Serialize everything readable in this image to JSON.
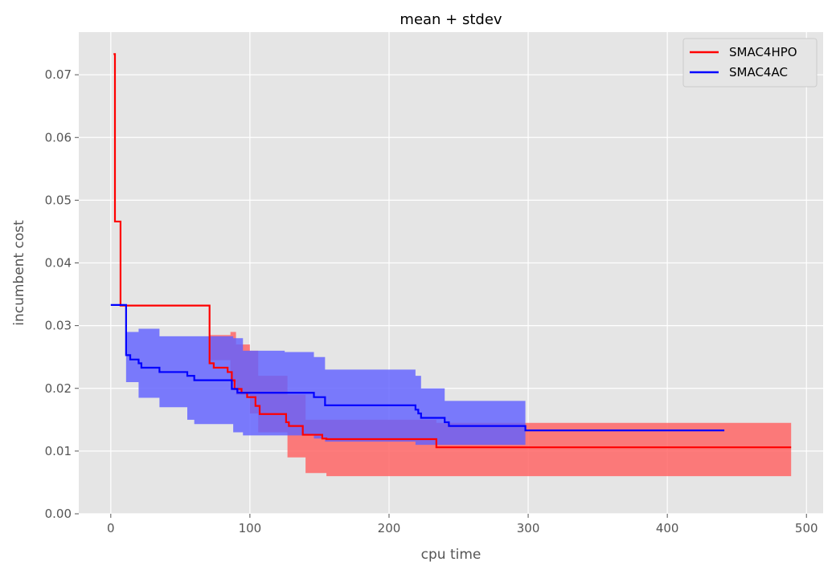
{
  "chart_data": {
    "type": "line",
    "title": "mean + stdev",
    "xlabel": "cpu time",
    "ylabel": "incumbent cost",
    "xlim": [
      -23,
      512
    ],
    "ylim": [
      0.0,
      0.0768
    ],
    "xticks": [
      "0",
      "100",
      "200",
      "300",
      "400",
      "500"
    ],
    "yticks": [
      "0.00",
      "0.01",
      "0.02",
      "0.03",
      "0.04",
      "0.05",
      "0.06",
      "0.07"
    ],
    "grid": true,
    "legend_position": "top-right",
    "series": [
      {
        "name": "SMAC4HPO",
        "color": "#ff0000",
        "band_color": "#ff6060",
        "points": [
          [
            2,
            0.0733
          ],
          [
            3,
            0.0733
          ],
          [
            3,
            0.0466
          ],
          [
            7,
            0.0466
          ],
          [
            7,
            0.0332
          ],
          [
            71,
            0.0332
          ],
          [
            71,
            0.024
          ],
          [
            74,
            0.024
          ],
          [
            74,
            0.0233
          ],
          [
            84,
            0.0233
          ],
          [
            84,
            0.0226
          ],
          [
            87,
            0.0226
          ],
          [
            87,
            0.0213
          ],
          [
            89,
            0.0213
          ],
          [
            89,
            0.0199
          ],
          [
            94,
            0.0199
          ],
          [
            94,
            0.0193
          ],
          [
            98,
            0.0193
          ],
          [
            98,
            0.0186
          ],
          [
            104,
            0.0186
          ],
          [
            104,
            0.0172
          ],
          [
            107,
            0.0172
          ],
          [
            107,
            0.0159
          ],
          [
            126,
            0.0159
          ],
          [
            126,
            0.0146
          ],
          [
            128,
            0.0146
          ],
          [
            128,
            0.014
          ],
          [
            138,
            0.014
          ],
          [
            138,
            0.0126
          ],
          [
            152,
            0.0126
          ],
          [
            152,
            0.012
          ],
          [
            155,
            0.012
          ],
          [
            155,
            0.0119
          ],
          [
            234,
            0.0119
          ],
          [
            234,
            0.0106
          ],
          [
            489,
            0.0106
          ]
        ],
        "band": [
          [
            71,
            0.0245,
            0.0285
          ],
          [
            86,
            0.021,
            0.029
          ],
          [
            90,
            0.019,
            0.027
          ],
          [
            100,
            0.016,
            0.026
          ],
          [
            106,
            0.013,
            0.022
          ],
          [
            127,
            0.009,
            0.019
          ],
          [
            140,
            0.0065,
            0.015
          ],
          [
            155,
            0.006,
            0.015
          ],
          [
            234,
            0.006,
            0.0145
          ],
          [
            489,
            0.0072,
            0.0142
          ]
        ]
      },
      {
        "name": "SMAC4AC",
        "color": "#0000ff",
        "band_color": "#6060ff",
        "points": [
          [
            0,
            0.0333
          ],
          [
            11,
            0.0333
          ],
          [
            11,
            0.0253
          ],
          [
            14,
            0.0253
          ],
          [
            14,
            0.0246
          ],
          [
            20,
            0.0246
          ],
          [
            20,
            0.024
          ],
          [
            22,
            0.024
          ],
          [
            22,
            0.0233
          ],
          [
            35,
            0.0233
          ],
          [
            35,
            0.0226
          ],
          [
            55,
            0.0226
          ],
          [
            55,
            0.022
          ],
          [
            60,
            0.022
          ],
          [
            60,
            0.0213
          ],
          [
            87,
            0.0213
          ],
          [
            87,
            0.0199
          ],
          [
            91,
            0.0199
          ],
          [
            91,
            0.0193
          ],
          [
            146,
            0.0193
          ],
          [
            146,
            0.0186
          ],
          [
            154,
            0.0186
          ],
          [
            154,
            0.0173
          ],
          [
            219,
            0.0173
          ],
          [
            219,
            0.0166
          ],
          [
            221,
            0.0166
          ],
          [
            221,
            0.016
          ],
          [
            223,
            0.016
          ],
          [
            223,
            0.0153
          ],
          [
            240,
            0.0153
          ],
          [
            240,
            0.0146
          ],
          [
            243,
            0.0146
          ],
          [
            243,
            0.014
          ],
          [
            298,
            0.014
          ],
          [
            298,
            0.0133
          ],
          [
            441,
            0.0133
          ]
        ],
        "band": [
          [
            11,
            0.021,
            0.029
          ],
          [
            20,
            0.0185,
            0.0295
          ],
          [
            35,
            0.017,
            0.0283
          ],
          [
            55,
            0.015,
            0.0283
          ],
          [
            60,
            0.0143,
            0.0283
          ],
          [
            88,
            0.013,
            0.028
          ],
          [
            95,
            0.0125,
            0.026
          ],
          [
            125,
            0.0125,
            0.0258
          ],
          [
            146,
            0.012,
            0.025
          ],
          [
            154,
            0.0115,
            0.023
          ],
          [
            219,
            0.011,
            0.022
          ],
          [
            223,
            0.011,
            0.02
          ],
          [
            240,
            0.011,
            0.018
          ],
          [
            298,
            0.011,
            0.016
          ]
        ]
      }
    ]
  }
}
